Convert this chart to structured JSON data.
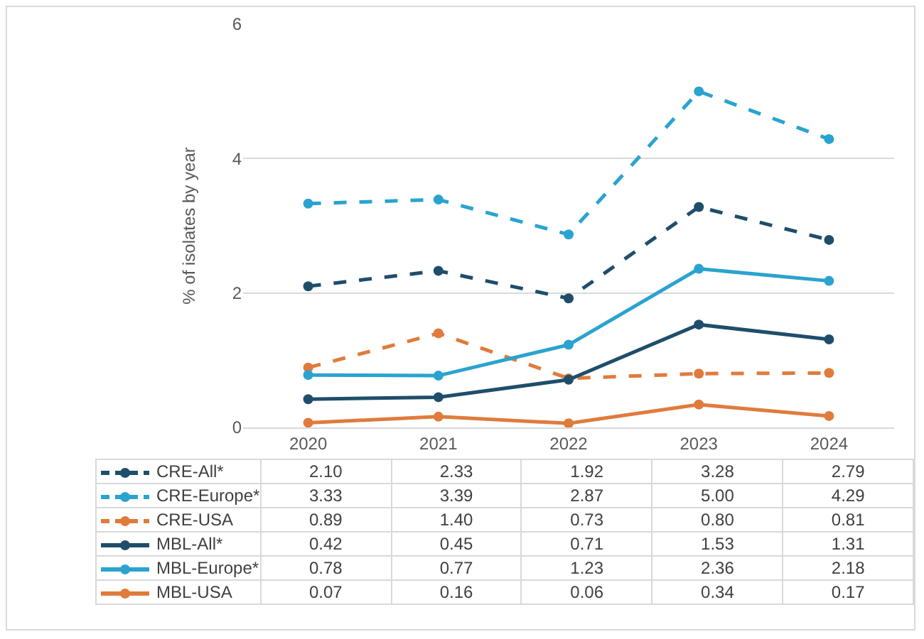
{
  "chart_data": {
    "type": "line",
    "ylabel": "% of isolates by year",
    "categories": [
      "2020",
      "2021",
      "2022",
      "2023",
      "2024"
    ],
    "series": [
      {
        "name": "CRE-All*",
        "color": "#1f4e6b",
        "line_style": "dashed",
        "values": [
          2.1,
          2.33,
          1.92,
          3.28,
          2.79
        ],
        "value_labels": [
          "2.10",
          "2.33",
          "1.92",
          "3.28",
          "2.79"
        ]
      },
      {
        "name": "CRE-Europe*",
        "color": "#2aa3d0",
        "line_style": "dashed",
        "values": [
          3.33,
          3.39,
          2.87,
          5.0,
          4.29
        ],
        "value_labels": [
          "3.33",
          "3.39",
          "2.87",
          "5.00",
          "4.29"
        ]
      },
      {
        "name": "CRE-USA",
        "color": "#e07b3c",
        "line_style": "dashed",
        "values": [
          0.89,
          1.4,
          0.73,
          0.8,
          0.81
        ],
        "value_labels": [
          "0.89",
          "1.40",
          "0.73",
          "0.80",
          "0.81"
        ]
      },
      {
        "name": "MBL-All*",
        "color": "#1f4e6b",
        "line_style": "solid",
        "values": [
          0.42,
          0.45,
          0.71,
          1.53,
          1.31
        ],
        "value_labels": [
          "0.42",
          "0.45",
          "0.71",
          "1.53",
          "1.31"
        ]
      },
      {
        "name": "MBL-Europe*",
        "color": "#2aa3d0",
        "line_style": "solid",
        "values": [
          0.78,
          0.77,
          1.23,
          2.36,
          2.18
        ],
        "value_labels": [
          "0.78",
          "0.77",
          "1.23",
          "2.36",
          "2.18"
        ]
      },
      {
        "name": "MBL-USA",
        "color": "#e07b3c",
        "line_style": "solid",
        "values": [
          0.07,
          0.16,
          0.06,
          0.34,
          0.17
        ],
        "value_labels": [
          "0.07",
          "0.16",
          "0.06",
          "0.34",
          "0.17"
        ]
      }
    ],
    "ylim": [
      0,
      6
    ],
    "yticks": [
      0,
      2,
      4,
      6
    ],
    "grid": "y",
    "marker": "circle",
    "legend": "bottom"
  }
}
